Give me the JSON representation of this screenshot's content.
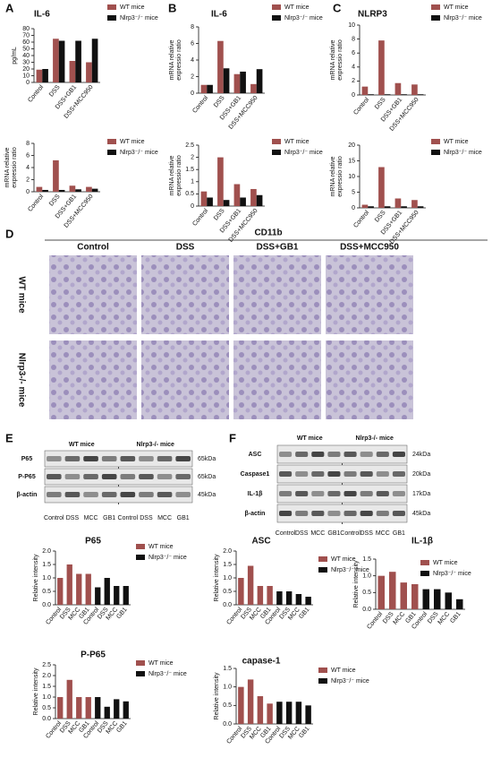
{
  "panel_labels": [
    "A",
    "B",
    "C",
    "D",
    "E",
    "F"
  ],
  "chart_data": [
    {
      "type": "bar",
      "title": "IL-6",
      "ylabel": [
        "pg/mL"
      ],
      "categories": [
        "Control",
        "DSS",
        "DSS+GB1",
        "DSS+MCC950"
      ],
      "series": [
        {
          "name": "WT mice",
          "color": "#a0504e",
          "values": [
            19,
            65,
            32,
            30
          ]
        },
        {
          "name": "Nlrp3⁻/⁻ mice",
          "color": "#111111",
          "values": [
            20,
            62,
            62,
            65
          ]
        }
      ],
      "ylim": [
        0,
        80
      ],
      "yticks": [
        0,
        10,
        20,
        30,
        40,
        50,
        60,
        70,
        80
      ]
    },
    {
      "type": "bar",
      "ylabel": [
        "mRNA relative",
        "expressio ratio"
      ],
      "categories": [
        "Control",
        "DSS",
        "DSS+GB1",
        "DSS+MCC950"
      ],
      "series": [
        {
          "name": "WT mice",
          "color": "#a0504e",
          "values": [
            0.8,
            5.2,
            1.0,
            0.8
          ]
        },
        {
          "name": "Nlrp3⁻/⁻ mice",
          "color": "#111111",
          "values": [
            0.3,
            0.3,
            0.4,
            0.5
          ]
        }
      ],
      "ylim": [
        0,
        8
      ],
      "yticks": [
        0,
        2,
        4,
        6,
        8
      ]
    },
    {
      "type": "bar",
      "title": "IL-6",
      "ylabel": [
        "mRNA relative",
        "expressio ratio"
      ],
      "categories": [
        "Control",
        "DSS",
        "DSS+GB1",
        "DSS+MCC950"
      ],
      "series": [
        {
          "name": "WT mice",
          "color": "#a0504e",
          "values": [
            1.0,
            6.3,
            2.3,
            1.1
          ]
        },
        {
          "name": "Nlrp3⁻/⁻ mice",
          "color": "#111111",
          "values": [
            1.0,
            3.0,
            2.6,
            2.9
          ]
        }
      ],
      "ylim": [
        0,
        8
      ],
      "yticks": [
        0,
        2,
        4,
        6,
        8
      ]
    },
    {
      "type": "bar",
      "ylabel": [
        "mRNA relative",
        "expressio ratio"
      ],
      "categories": [
        "Control",
        "DSS",
        "DSS+GB1",
        "DSS+MCC950"
      ],
      "series": [
        {
          "name": "WT mice",
          "color": "#a0504e",
          "values": [
            0.6,
            2.0,
            0.9,
            0.7
          ]
        },
        {
          "name": "Nlrp3⁻/⁻ mice",
          "color": "#111111",
          "values": [
            0.35,
            0.25,
            0.35,
            0.45
          ]
        }
      ],
      "ylim": [
        0,
        2.5
      ],
      "yticks": [
        0,
        0.5,
        1,
        1.5,
        2,
        2.5
      ]
    },
    {
      "type": "bar",
      "title": "NLRP3",
      "ylabel": [
        "mRNA relative",
        "expressio ratio"
      ],
      "categories": [
        "Control",
        "DSS",
        "DSS+GB1",
        "DSS+MCC950"
      ],
      "series": [
        {
          "name": "WT mice",
          "color": "#a0504e",
          "values": [
            1.2,
            7.8,
            1.7,
            1.5
          ]
        },
        {
          "name": "Nlrp3⁻/⁻ mice",
          "color": "#111111",
          "values": [
            0.1,
            0.1,
            0.1,
            0.1
          ]
        }
      ],
      "ylim": [
        0,
        10
      ],
      "yticks": [
        0,
        2,
        4,
        6,
        8,
        10
      ]
    },
    {
      "type": "bar",
      "ylabel": [
        "mRNA relative",
        "expressio ratio"
      ],
      "categories": [
        "Control",
        "DSS",
        "DSS+GB1",
        "DSS+MCC950"
      ],
      "series": [
        {
          "name": "WT mice",
          "color": "#a0504e",
          "values": [
            1.0,
            13.0,
            3.0,
            2.5
          ]
        },
        {
          "name": "Nlrp3⁻/⁻ mice",
          "color": "#111111",
          "values": [
            0.5,
            0.5,
            0.5,
            0.5
          ]
        }
      ],
      "ylim": [
        0,
        20
      ],
      "yticks": [
        0,
        5,
        10,
        15,
        20
      ]
    },
    {
      "type": "bar",
      "title": "P65",
      "ylabel": [
        "Relative intensity"
      ],
      "categories": [
        "Control",
        "DSS",
        "MCC",
        "GB1",
        "Control",
        "DSS",
        "MCC",
        "GB1"
      ],
      "series": [
        {
          "name": "WT mice",
          "color": "#a0504e",
          "values": [
            1.0,
            1.5,
            1.15,
            1.15,
            null,
            null,
            null,
            null
          ]
        },
        {
          "name": "Nlrp3⁻/⁻ mice",
          "color": "#111111",
          "values": [
            null,
            null,
            null,
            null,
            0.65,
            1.0,
            0.7,
            0.7
          ]
        }
      ],
      "ylim": [
        0,
        2
      ],
      "yticks": [
        {
          "value": 0,
          "label": "0.0"
        },
        0.5,
        {
          "value": 1,
          "label": "1.0"
        },
        1.5,
        {
          "value": 2,
          "label": "2.0"
        }
      ]
    },
    {
      "type": "bar",
      "title": "ASC",
      "ylabel": [
        "Relative intensity"
      ],
      "categories": [
        "Control",
        "DSS",
        "MCC",
        "GB1",
        "Control",
        "DSS",
        "MCC",
        "GB1"
      ],
      "series": [
        {
          "name": "WT mice",
          "color": "#a0504e",
          "values": [
            1.0,
            1.45,
            0.7,
            0.7,
            null,
            null,
            null,
            null
          ]
        },
        {
          "name": "Nlrp3⁻/⁻ mice",
          "color": "#111111",
          "values": [
            null,
            null,
            null,
            null,
            0.5,
            0.5,
            0.4,
            0.3
          ]
        }
      ],
      "ylim": [
        0,
        2
      ],
      "yticks": [
        {
          "value": 0,
          "label": "0.0"
        },
        0.5,
        {
          "value": 1,
          "label": "1.0"
        },
        1.5,
        {
          "value": 2,
          "label": "2.0"
        }
      ]
    },
    {
      "type": "bar",
      "title": "IL-1β",
      "ylabel": [
        "Relative intensity"
      ],
      "categories": [
        "Control",
        "DSS",
        "MCC",
        "GB1",
        "Control",
        "DSS",
        "MCC",
        "GB1"
      ],
      "series": [
        {
          "name": "WT mice",
          "color": "#a0504e",
          "values": [
            1.0,
            1.12,
            0.8,
            0.75,
            null,
            null,
            null,
            null
          ]
        },
        {
          "name": "Nlrp3⁻/⁻ mice",
          "color": "#111111",
          "values": [
            null,
            null,
            null,
            null,
            0.6,
            0.6,
            0.5,
            0.3
          ]
        }
      ],
      "ylim": [
        0,
        1.5
      ],
      "yticks": [
        {
          "value": 0,
          "label": "0.0"
        },
        0.5,
        {
          "value": 1,
          "label": "1.0"
        },
        1.5
      ]
    },
    {
      "type": "bar",
      "title": "P-P65",
      "ylabel": [
        "Relative intensity"
      ],
      "categories": [
        "Control",
        "DSS",
        "MCC",
        "GB1",
        "Control",
        "DSS",
        "MCC",
        "GB1"
      ],
      "series": [
        {
          "name": "WT mice",
          "color": "#a0504e",
          "values": [
            1.0,
            1.8,
            1.0,
            1.0,
            null,
            null,
            null,
            null
          ]
        },
        {
          "name": "Nlrp3⁻/⁻ mice",
          "color": "#111111",
          "values": [
            null,
            null,
            null,
            null,
            1.0,
            0.55,
            0.9,
            0.8
          ]
        }
      ],
      "ylim": [
        0,
        2.5
      ],
      "yticks": [
        {
          "value": 0,
          "label": "0.0"
        },
        0.5,
        {
          "value": 1,
          "label": "1.0"
        },
        1.5,
        {
          "value": 2,
          "label": "2.0"
        },
        2.5
      ]
    },
    {
      "type": "bar",
      "title": "capase-1",
      "ylabel": [
        "Relative intensity"
      ],
      "categories": [
        "Control",
        "DSS",
        "MCC",
        "GB1",
        "Control",
        "DSS",
        "MCC",
        "GB1"
      ],
      "series": [
        {
          "name": "WT mice",
          "color": "#a0504e",
          "values": [
            1.0,
            1.2,
            0.75,
            0.55,
            null,
            null,
            null,
            null
          ]
        },
        {
          "name": "Nlrp3⁻/⁻ mice",
          "color": "#111111",
          "values": [
            null,
            null,
            null,
            null,
            0.6,
            0.6,
            0.6,
            0.5
          ]
        }
      ],
      "ylim": [
        0,
        1.5
      ],
      "yticks": [
        {
          "value": 0,
          "label": "0.0"
        },
        0.5,
        {
          "value": 1,
          "label": "1.0"
        },
        1.5
      ]
    }
  ],
  "histology": {
    "title": "CD11b",
    "columns": [
      "Control",
      "DSS",
      "DSS+GB1",
      "DSS+MCC950"
    ],
    "rows": [
      "WT mice",
      "Nlrp3-/- mice"
    ]
  },
  "blots": [
    {
      "groups": [
        "WT mice",
        "Nlrp3-/- mice"
      ],
      "proteins": [
        "P65",
        "P-P65",
        "β-actin"
      ],
      "sizes": [
        "65kDa",
        "65kDa",
        "45kDa"
      ],
      "lanes": [
        "Control",
        "DSS",
        "MCC",
        "GB1",
        "Control",
        "DSS",
        "MCC",
        "GB1"
      ]
    },
    {
      "groups": [
        "WT mice",
        "Nlrp3-/- mice"
      ],
      "proteins": [
        "ASC",
        "Caspase1",
        "IL-1β",
        "β-actin"
      ],
      "sizes": [
        "24kDa",
        "20kDa",
        "17kDa",
        "45kDa"
      ],
      "lanes": [
        "Control",
        "DSS",
        "MCC",
        "GB1",
        "Control",
        "DSS",
        "MCC",
        "GB1"
      ]
    }
  ]
}
